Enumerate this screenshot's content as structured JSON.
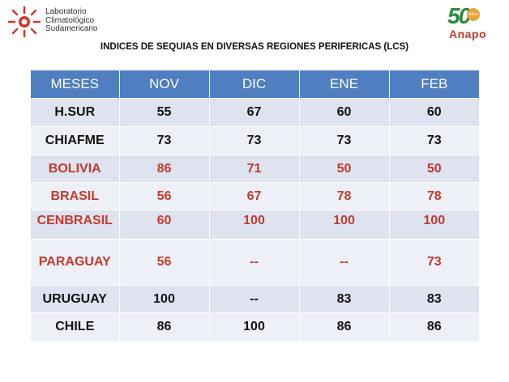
{
  "header": {
    "lcs_logo_lines": [
      "Laboratorio",
      "Climatológico",
      "Sudamericano"
    ],
    "anapo_number": "50",
    "anapo_badge": "Años",
    "anapo_name": "Anapo"
  },
  "title": "INDICES DE SEQUIAS EN DIVERSAS REGIONES PERIFERICAS (LCS)",
  "table": {
    "headers": [
      "MESES",
      "NOV",
      "DIC",
      "ENE",
      "FEB"
    ],
    "rows": [
      {
        "region": "H.SUR",
        "values": [
          "55",
          "67",
          "60",
          "60"
        ],
        "color": "#111111"
      },
      {
        "region": "CHIAFME",
        "values": [
          "73",
          "73",
          "73",
          "73"
        ],
        "color": "#111111"
      },
      {
        "region": "BOLIVIA",
        "values": [
          "86",
          "71",
          "50",
          "50"
        ],
        "color": "#c43a2c"
      },
      {
        "region": "BRASIL",
        "values": [
          "56",
          "67",
          "78",
          "78"
        ],
        "color": "#c43a2c"
      },
      {
        "region": "CENBRASIL",
        "values": [
          "60",
          "100",
          "100",
          "100"
        ],
        "color": "#c43a2c"
      },
      {
        "region": "PARAGUAY",
        "values": [
          "56",
          "--",
          "--",
          "73"
        ],
        "color": "#c43a2c"
      },
      {
        "region": "URUGUAY",
        "values": [
          "100",
          "--",
          "83",
          "83"
        ],
        "color": "#111111"
      },
      {
        "region": "CHILE",
        "values": [
          "86",
          "100",
          "86",
          "86"
        ],
        "color": "#111111"
      }
    ],
    "header_color": "#4f7fc0"
  }
}
